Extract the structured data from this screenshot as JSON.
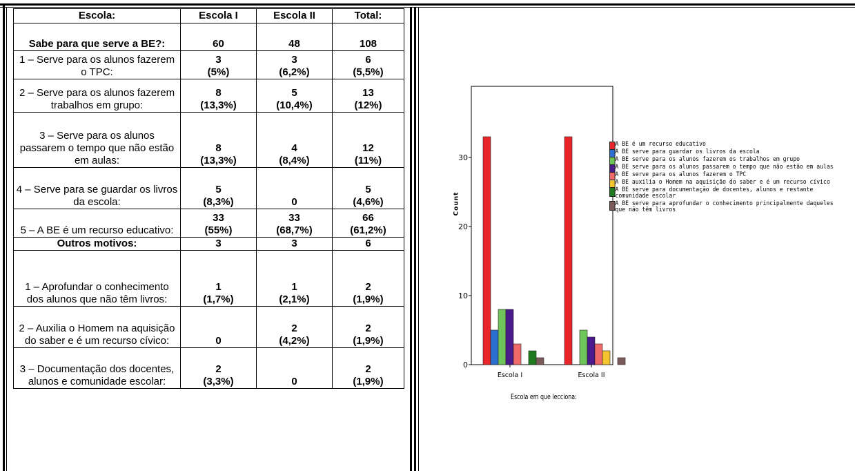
{
  "table": {
    "headers": [
      "Escola:",
      "Escola I",
      "Escola II",
      "Total:"
    ],
    "rows": [
      {
        "label": "Sabe para que serve a BE?:",
        "c1": "60",
        "c2": "48",
        "c3": "108",
        "bold": true
      },
      {
        "label": "1 – Serve para os alunos fazerem o TPC:",
        "c1": [
          "3",
          "(5%)"
        ],
        "c2": [
          "3",
          "(6,2%)"
        ],
        "c3": [
          "6",
          "(5,5%)"
        ]
      },
      {
        "label": "2 – Serve para os alunos fazerem trabalhos em grupo:",
        "c1": [
          "8",
          "(13,3%)"
        ],
        "c2": [
          "5",
          "(10,4%)"
        ],
        "c3": [
          "13",
          "(12%)"
        ]
      },
      {
        "label": "3 – Serve para os alunos passarem o tempo que não estão em aulas:",
        "c1": [
          "8",
          "(13,3%)"
        ],
        "c2": [
          "4",
          "(8,4%)"
        ],
        "c3": [
          "12",
          "(11%)"
        ]
      },
      {
        "label": "4 – Serve para se guardar os livros da escola:",
        "c1": [
          "5",
          "(8,3%)"
        ],
        "c2": [
          "0",
          ""
        ],
        "c3": [
          "5",
          "(4,6%)"
        ]
      },
      {
        "label": "5 – A BE é um recurso educativo:",
        "c1": [
          "33",
          "(55%)"
        ],
        "c2": [
          "33",
          "(68,7%)"
        ],
        "c3": [
          "66",
          "(61,2%)"
        ]
      },
      {
        "label": "Outros motivos:",
        "c1": "3",
        "c2": "3",
        "c3": "6",
        "bold": true
      },
      {
        "label": "1 – Aprofundar o conhecimento dos alunos que não têm livros:",
        "c1": [
          "1",
          "(1,7%)"
        ],
        "c2": [
          "1",
          "(2,1%)"
        ],
        "c3": [
          "2",
          "(1,9%)"
        ]
      },
      {
        "label": "2 – Auxilia o Homem na aquisição do saber e é um recurso cívico:",
        "c1": [
          "0",
          ""
        ],
        "c2": [
          "2",
          "(4,2%)"
        ],
        "c3": [
          "2",
          "(1,9%)"
        ]
      },
      {
        "label": "3 – Documentação dos docentes, alunos e comunidade escolar:",
        "c1": [
          "2",
          "(3,3%)"
        ],
        "c2": [
          "0",
          ""
        ],
        "c3": [
          "2",
          "(1,9%)"
        ]
      }
    ]
  },
  "chart_data": {
    "type": "bar",
    "categories": [
      "Escola I",
      "Escola II"
    ],
    "ylabel": "Count",
    "xlabel": "Escola em que lecciona:",
    "ylim": [
      0,
      35
    ],
    "yticks": [
      "0",
      "10",
      "20",
      "30"
    ],
    "series": [
      {
        "name": "A BE é um recurso educativo",
        "color": "#e8262a",
        "values": [
          33,
          33
        ]
      },
      {
        "name": "A BE serve para guardar os livros da escola",
        "color": "#2b6fd0",
        "values": [
          5,
          0
        ]
      },
      {
        "name": "A BE serve para os alunos fazerem os trabalhos em grupo",
        "color": "#6fc45a",
        "values": [
          8,
          5
        ]
      },
      {
        "name": "A BE serve para os alunos passarem o tempo que não estão em aulas",
        "color": "#4b1a8c",
        "values": [
          8,
          4
        ]
      },
      {
        "name": "A BE serve para os alunos fazerem o TPC",
        "color": "#f06a6a",
        "values": [
          3,
          3
        ]
      },
      {
        "name": "A BE auxilia o Homem na aquisição do saber e é um recurso cívico",
        "color": "#f4c430",
        "values": [
          0,
          2
        ]
      },
      {
        "name": "A BE serve para documentação de docentes, alunos e restante comunidade escolar",
        "color": "#1e7a1e",
        "values": [
          2,
          0
        ]
      },
      {
        "name": "A BE serve para aprofundar o conhecimento principalmente daqueles que não têm livros",
        "color": "#7d5a5a",
        "values": [
          1,
          1
        ]
      }
    ]
  }
}
